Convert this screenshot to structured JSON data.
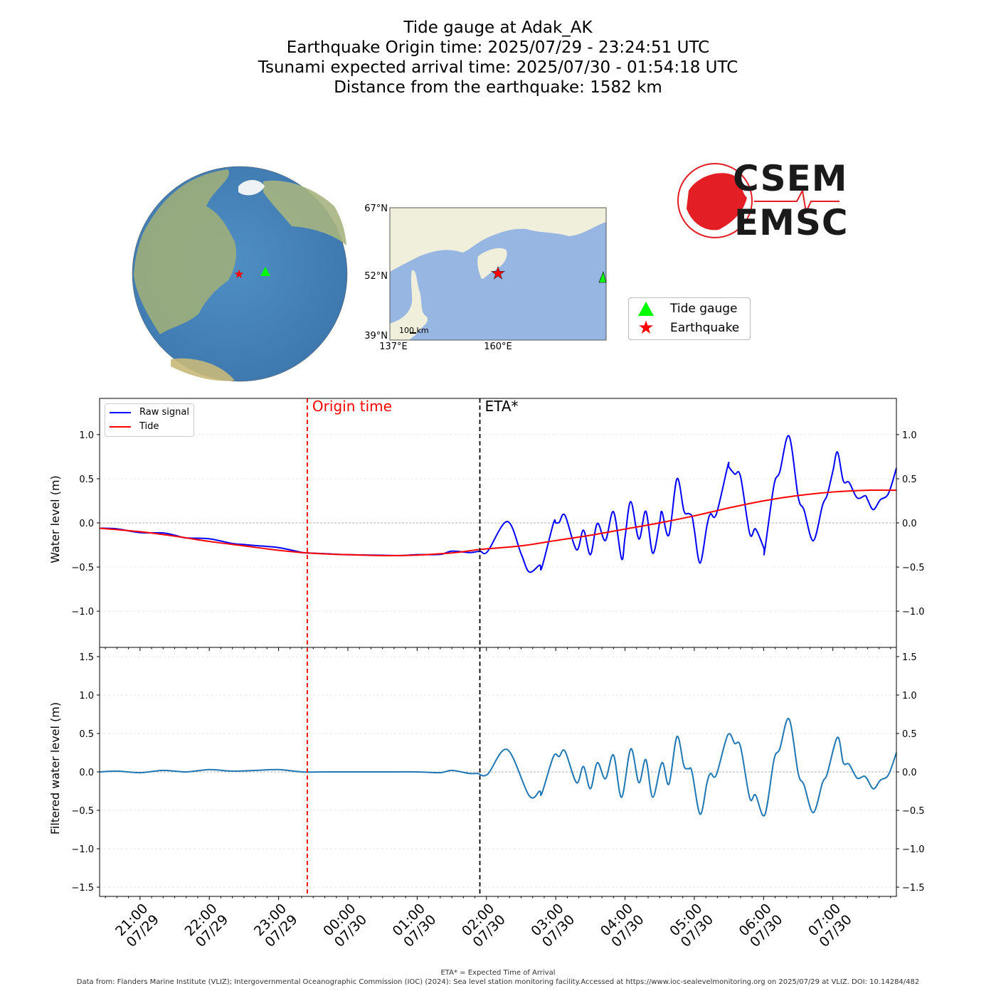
{
  "title": {
    "lines": [
      "Tide gauge at Adak_AK",
      "Earthquake Origin time: 2025/07/29 - 23:24:51 UTC",
      "Tsunami expected arrival time: 2025/07/30 - 01:54:18 UTC",
      "Distance from the earthquake: 1582 km"
    ]
  },
  "inset_map": {
    "lat_labels": [
      "67°N",
      "52°N",
      "39°N"
    ],
    "lon_labels": [
      "137°E",
      "160°E"
    ],
    "scale_bar": "100 km",
    "land_color": "#efefdb",
    "ocean_color": "#97b6e1"
  },
  "map_legend": {
    "items": [
      {
        "label": "Tide gauge",
        "marker": "triangle",
        "color": "#00ff00"
      },
      {
        "label": "Earthquake",
        "marker": "star",
        "color": "#ff0000"
      }
    ]
  },
  "logo": {
    "line1": "CSEM",
    "line2": "EMSC",
    "color": "#e31e24"
  },
  "plot_legend": {
    "items": [
      {
        "label": "Raw signal",
        "color": "#0000ff"
      },
      {
        "label": "Tide",
        "color": "#ff0000"
      }
    ]
  },
  "annotations": {
    "origin_label": "Origin time",
    "origin_time": "2025-07-29 23:24:51",
    "origin_color": "#ff0000",
    "eta_label": "ETA*",
    "eta_time": "2025-07-30 01:54:18"
  },
  "footer": {
    "note": "ETA* = Expected Time of Arrival",
    "source": "Data from: Flanders Marine Institute (VLIZ); Intergovernmental Oceanographic Commission (IOC) (2024): Sea level station monitoring facility.Accessed at https://www.ioc-sealevelmonitoring.org on 2025/07/29 at VLIZ. DOI: 10.14284/482"
  },
  "chart_data": [
    {
      "type": "line",
      "ylabel": "Water level (m)",
      "ylim": [
        -1.41,
        1.41
      ],
      "yticks": [
        -1.0,
        -0.5,
        0.0,
        0.5,
        1.0
      ],
      "xlim": [
        "2025-07-29 20:25",
        "2025-07-30 07:55"
      ],
      "grid": true,
      "legend": "top-left",
      "series": [
        {
          "name": "Tide",
          "color": "#ff0000",
          "points": [
            [
              "2025-07-29 20:25",
              -0.06
            ],
            [
              "2025-07-29 21:00",
              -0.1
            ],
            [
              "2025-07-29 21:30",
              -0.15
            ],
            [
              "2025-07-29 22:00",
              -0.21
            ],
            [
              "2025-07-29 22:30",
              -0.26
            ],
            [
              "2025-07-29 23:00",
              -0.31
            ],
            [
              "2025-07-29 23:25",
              -0.34
            ],
            [
              "2025-07-30 00:00",
              -0.36
            ],
            [
              "2025-07-30 00:45",
              -0.37
            ],
            [
              "2025-07-30 01:30",
              -0.34
            ],
            [
              "2025-07-30 01:55",
              -0.3
            ],
            [
              "2025-07-30 02:30",
              -0.26
            ],
            [
              "2025-07-30 03:00",
              -0.2
            ],
            [
              "2025-07-30 03:30",
              -0.14
            ],
            [
              "2025-07-30 04:00",
              -0.07
            ],
            [
              "2025-07-30 04:30",
              0.0
            ],
            [
              "2025-07-30 05:00",
              0.08
            ],
            [
              "2025-07-30 05:30",
              0.17
            ],
            [
              "2025-07-30 06:00",
              0.25
            ],
            [
              "2025-07-30 06:30",
              0.31
            ],
            [
              "2025-07-30 07:00",
              0.35
            ],
            [
              "2025-07-30 07:30",
              0.37
            ],
            [
              "2025-07-30 07:55",
              0.37
            ]
          ]
        },
        {
          "name": "Raw signal",
          "color": "#0000ff",
          "derived": "tide_plus_filtered"
        }
      ]
    },
    {
      "type": "line",
      "ylabel": "Filtered water level (m)",
      "ylim": [
        -1.62,
        1.62
      ],
      "yticks": [
        -1.5,
        -1.0,
        -0.5,
        0.0,
        0.5,
        1.0,
        1.5
      ],
      "xlim": [
        "2025-07-29 20:25",
        "2025-07-30 07:55"
      ],
      "xticks": [
        [
          "21:00",
          "07/29"
        ],
        [
          "22:00",
          "07/29"
        ],
        [
          "23:00",
          "07/29"
        ],
        [
          "00:00",
          "07/30"
        ],
        [
          "01:00",
          "07/30"
        ],
        [
          "02:00",
          "07/30"
        ],
        [
          "03:00",
          "07/30"
        ],
        [
          "04:00",
          "07/30"
        ],
        [
          "05:00",
          "07/30"
        ],
        [
          "06:00",
          "07/30"
        ],
        [
          "07:00",
          "07/30"
        ]
      ],
      "xtick_times": [
        "2025-07-29 21:00",
        "2025-07-29 22:00",
        "2025-07-29 23:00",
        "2025-07-30 00:00",
        "2025-07-30 01:00",
        "2025-07-30 02:00",
        "2025-07-30 03:00",
        "2025-07-30 04:00",
        "2025-07-30 05:00",
        "2025-07-30 06:00",
        "2025-07-30 07:00"
      ],
      "grid": true,
      "series": [
        {
          "name": "Filtered",
          "color": "#1f77b4",
          "points": [
            [
              "2025-07-29 20:25",
              0.0
            ],
            [
              "2025-07-29 20:40",
              0.01
            ],
            [
              "2025-07-29 21:00",
              -0.01
            ],
            [
              "2025-07-29 21:20",
              0.02
            ],
            [
              "2025-07-29 21:40",
              0.0
            ],
            [
              "2025-07-29 22:00",
              0.03
            ],
            [
              "2025-07-29 22:20",
              0.01
            ],
            [
              "2025-07-29 22:40",
              0.02
            ],
            [
              "2025-07-29 23:00",
              0.03
            ],
            [
              "2025-07-29 23:20",
              0.0
            ],
            [
              "2025-07-29 23:40",
              0.0
            ],
            [
              "2025-07-30 00:00",
              0.0
            ],
            [
              "2025-07-30 00:30",
              0.0
            ],
            [
              "2025-07-30 01:00",
              0.0
            ],
            [
              "2025-07-30 01:20",
              -0.01
            ],
            [
              "2025-07-30 01:30",
              0.02
            ],
            [
              "2025-07-30 01:45",
              -0.02
            ],
            [
              "2025-07-30 01:52",
              -0.02
            ],
            [
              "2025-07-30 02:01",
              -0.03
            ],
            [
              "2025-07-30 02:18",
              0.29
            ],
            [
              "2025-07-30 02:37",
              -0.31
            ],
            [
              "2025-07-30 02:46",
              -0.25
            ],
            [
              "2025-07-30 02:48",
              -0.28
            ],
            [
              "2025-07-30 02:58",
              0.2
            ],
            [
              "2025-07-30 03:03",
              0.2
            ],
            [
              "2025-07-30 03:08",
              0.27
            ],
            [
              "2025-07-30 03:18",
              -0.14
            ],
            [
              "2025-07-30 03:24",
              0.07
            ],
            [
              "2025-07-30 03:30",
              -0.22
            ],
            [
              "2025-07-30 03:36",
              0.12
            ],
            [
              "2025-07-30 03:43",
              -0.09
            ],
            [
              "2025-07-30 03:50",
              0.22
            ],
            [
              "2025-07-30 03:57",
              -0.33
            ],
            [
              "2025-07-30 04:05",
              0.3
            ],
            [
              "2025-07-30 04:12",
              -0.14
            ],
            [
              "2025-07-30 04:18",
              0.16
            ],
            [
              "2025-07-30 04:24",
              -0.33
            ],
            [
              "2025-07-30 04:32",
              0.12
            ],
            [
              "2025-07-30 04:38",
              -0.16
            ],
            [
              "2025-07-30 04:45",
              0.46
            ],
            [
              "2025-07-30 04:51",
              0.08
            ],
            [
              "2025-07-30 04:55",
              0.04
            ],
            [
              "2025-07-30 04:58",
              0.0
            ],
            [
              "2025-07-30 05:05",
              -0.55
            ],
            [
              "2025-07-30 05:11",
              -0.14
            ],
            [
              "2025-07-30 05:14",
              -0.02
            ],
            [
              "2025-07-30 05:19",
              -0.04
            ],
            [
              "2025-07-30 05:29",
              0.48
            ],
            [
              "2025-07-30 05:35",
              0.37
            ],
            [
              "2025-07-30 05:40",
              0.33
            ],
            [
              "2025-07-30 05:48",
              -0.34
            ],
            [
              "2025-07-30 05:53",
              -0.3
            ],
            [
              "2025-07-30 06:01",
              -0.56
            ],
            [
              "2025-07-30 06:09",
              0.16
            ],
            [
              "2025-07-30 06:14",
              0.3
            ],
            [
              "2025-07-30 06:22",
              0.69
            ],
            [
              "2025-07-30 06:30",
              -0.02
            ],
            [
              "2025-07-30 06:35",
              -0.17
            ],
            [
              "2025-07-30 06:43",
              -0.53
            ],
            [
              "2025-07-30 06:51",
              -0.14
            ],
            [
              "2025-07-30 06:55",
              -0.03
            ],
            [
              "2025-07-30 07:04",
              0.45
            ],
            [
              "2025-07-30 07:09",
              0.12
            ],
            [
              "2025-07-30 07:14",
              0.1
            ],
            [
              "2025-07-30 07:21",
              -0.08
            ],
            [
              "2025-07-30 07:28",
              -0.06
            ],
            [
              "2025-07-30 07:35",
              -0.22
            ],
            [
              "2025-07-30 07:41",
              -0.11
            ],
            [
              "2025-07-30 07:48",
              -0.04
            ],
            [
              "2025-07-30 07:55",
              0.25
            ]
          ]
        }
      ]
    }
  ]
}
